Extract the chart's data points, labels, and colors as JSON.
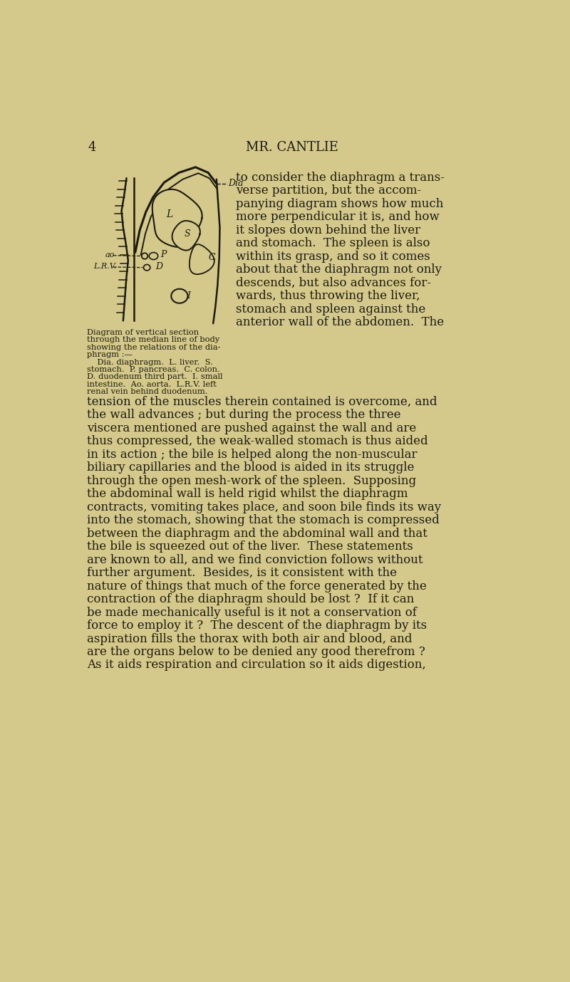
{
  "bg_color": "#d4c98a",
  "text_color": "#1a1a0a",
  "page_number": "4",
  "header": "MR. CANTLIE",
  "caption_lines": [
    "Diagram of vertical section",
    "through the median line of body",
    "showing the relations of the dia-",
    "phragm :—",
    "    Dia. diaphragm.  L. liver.  S.",
    "stomach.  P. pancreas.  C. colon.",
    "D. duodenum third part.  I. small",
    "intestine.  Ao. aorta.  L.R.V. left",
    "renal vein behind duodenum."
  ],
  "body_text_right": [
    "to consider the diaphragm a trans-",
    "verse partition, but the accom-",
    "panying diagram shows how much",
    "more perpendicular it is, and how",
    "it slopes down behind the liver",
    "and stomach.  The spleen is also",
    "within its grasp, and so it comes",
    "about that the diaphragm not only",
    "descends, but also advances for-",
    "wards, thus throwing the liver,",
    "stomach and spleen against the",
    "anterior wall of the abdomen.  The"
  ],
  "body_text_full": [
    "tension of the muscles therein contained is overcome, and",
    "the wall advances ; but during the process the three",
    "viscera mentioned are pushed against the wall and are",
    "thus compressed, the weak-walled stomach is thus aided",
    "in its action ; the bile is helped along the non-muscular",
    "biliary capillaries and the blood is aided in its struggle",
    "through the open mesh-work of the spleen.  Supposing",
    "the abdominal wall is held rigid whilst the diaphragm",
    "contracts, vomiting takes place, and soon bile finds its way",
    "into the stomach, showing that the stomach is compressed",
    "between the diaphragm and the abdominal wall and that",
    "the bile is squeezed out of the liver.  These statements",
    "are known to all, and we find conviction follows without",
    "further argument.  Besides, is it consistent with the",
    "nature of things that much of the force generated by the",
    "contraction of the diaphragm should be lost ?  If it can",
    "be made mechanically useful is it not a conservation of",
    "force to employ it ?  The descent of the diaphragm by its",
    "aspiration fills the thorax with both air and blood, and",
    "are the organs below to be denied any good therefrom ?",
    "As it aids respiration and circulation so it aids digestion,"
  ]
}
